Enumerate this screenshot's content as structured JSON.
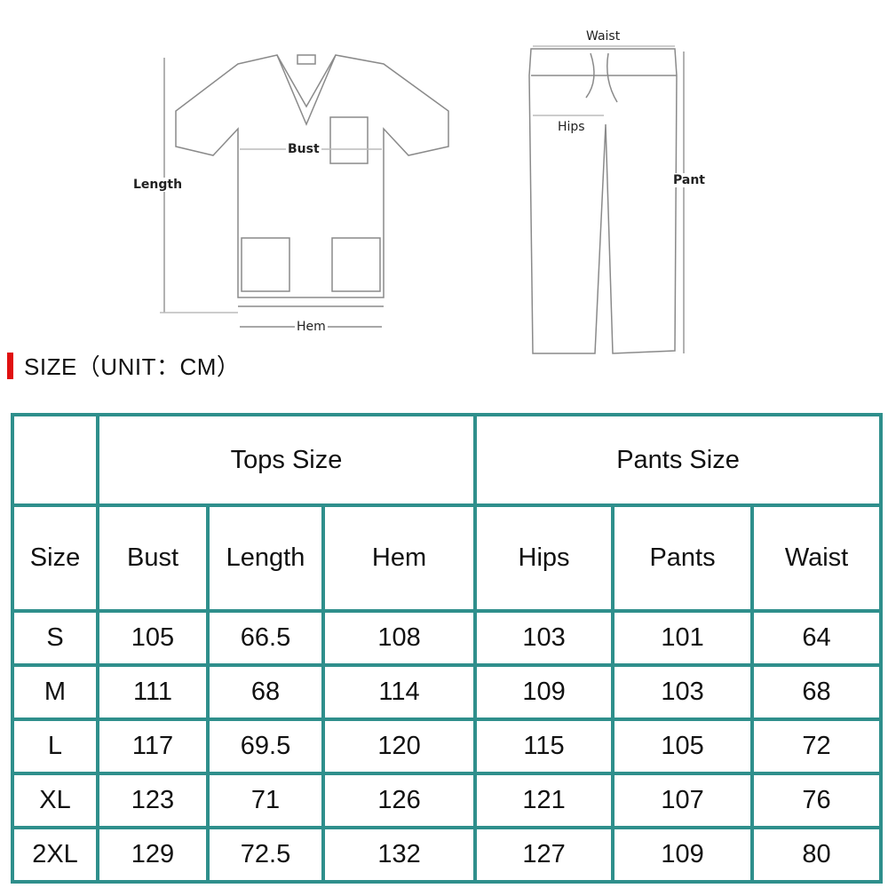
{
  "diagram_labels": {
    "top": {
      "length": "Length",
      "bust": "Bust",
      "hem": "Hem"
    },
    "pants": {
      "waist": "Waist",
      "hips": "Hips",
      "pant": "Pant"
    }
  },
  "title": "SIZE（UNIT：CM）",
  "accent_color": "#e01010",
  "border_color": "#2f8f8c",
  "table": {
    "group_headers": [
      "Tops Size",
      "Pants Size"
    ],
    "columns": [
      "Size",
      "Bust",
      "Length",
      "Hem",
      "Hips",
      "Pants",
      "Waist"
    ],
    "rows": [
      [
        "S",
        "105",
        "66.5",
        "108",
        "103",
        "101",
        "64"
      ],
      [
        "M",
        "111",
        "68",
        "114",
        "109",
        "103",
        "68"
      ],
      [
        "L",
        "117",
        "69.5",
        "120",
        "115",
        "105",
        "72"
      ],
      [
        "XL",
        "123",
        "71",
        "126",
        "121",
        "107",
        "76"
      ],
      [
        "2XL",
        "129",
        "72.5",
        "132",
        "127",
        "109",
        "80"
      ]
    ]
  }
}
